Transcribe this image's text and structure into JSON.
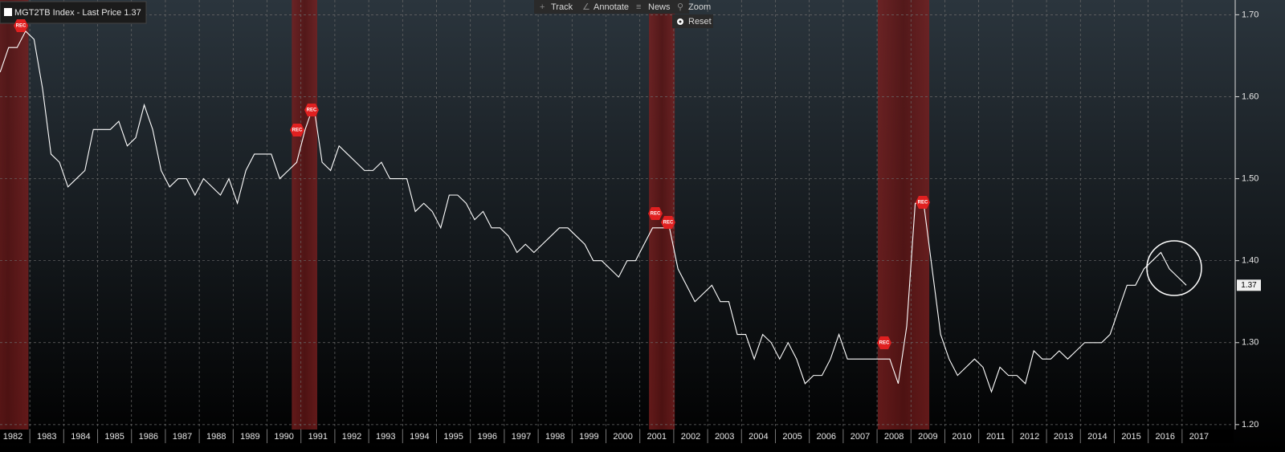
{
  "chart_data": {
    "type": "line",
    "x": [
      1982.125,
      1982.375,
      1982.625,
      1982.875,
      1983.125,
      1983.375,
      1983.625,
      1983.875,
      1984.125,
      1984.375,
      1984.625,
      1984.875,
      1985.125,
      1985.375,
      1985.625,
      1985.875,
      1986.125,
      1986.375,
      1986.625,
      1986.875,
      1987.125,
      1987.375,
      1987.625,
      1987.875,
      1988.125,
      1988.375,
      1988.625,
      1988.875,
      1989.125,
      1989.375,
      1989.625,
      1989.875,
      1990.125,
      1990.375,
      1990.625,
      1990.875,
      1991.125,
      1991.375,
      1991.625,
      1991.875,
      1992.125,
      1992.375,
      1992.625,
      1992.875,
      1993.125,
      1993.375,
      1993.625,
      1993.875,
      1994.125,
      1994.375,
      1994.625,
      1994.875,
      1995.125,
      1995.375,
      1995.625,
      1995.875,
      1996.125,
      1996.375,
      1996.625,
      1996.875,
      1997.125,
      1997.375,
      1997.625,
      1997.875,
      1998.125,
      1998.375,
      1998.625,
      1998.875,
      1999.125,
      1999.375,
      1999.625,
      1999.875,
      2000.125,
      2000.375,
      2000.625,
      2000.875,
      2001.125,
      2001.375,
      2001.625,
      2001.875,
      2002.125,
      2002.375,
      2002.625,
      2002.875,
      2003.125,
      2003.375,
      2003.625,
      2003.875,
      2004.125,
      2004.375,
      2004.625,
      2004.875,
      2005.125,
      2005.375,
      2005.625,
      2005.875,
      2006.125,
      2006.375,
      2006.625,
      2006.875,
      2007.125,
      2007.375,
      2007.625,
      2007.875,
      2008.125,
      2008.375,
      2008.625,
      2008.875,
      2009.125,
      2009.375,
      2009.625,
      2009.875,
      2010.125,
      2010.375,
      2010.625,
      2010.875,
      2011.125,
      2011.375,
      2011.625,
      2011.875,
      2012.125,
      2012.375,
      2012.625,
      2012.875,
      2013.125,
      2013.375,
      2013.625,
      2013.875,
      2014.125,
      2014.375,
      2014.625,
      2014.875,
      2015.125,
      2015.375,
      2015.625,
      2015.875,
      2016.125,
      2016.375,
      2016.625,
      2016.875,
      2017.125
    ],
    "series": [
      {
        "name": "MGT2TB Index - Last Price 1.37",
        "color": "#ffffff",
        "values": [
          1.63,
          1.66,
          1.66,
          1.68,
          1.67,
          1.61,
          1.53,
          1.52,
          1.49,
          1.5,
          1.51,
          1.56,
          1.56,
          1.56,
          1.57,
          1.54,
          1.55,
          1.59,
          1.56,
          1.51,
          1.49,
          1.5,
          1.5,
          1.48,
          1.5,
          1.49,
          1.48,
          1.5,
          1.47,
          1.51,
          1.53,
          1.53,
          1.53,
          1.5,
          1.51,
          1.52,
          1.56,
          1.59,
          1.52,
          1.51,
          1.54,
          1.53,
          1.52,
          1.51,
          1.51,
          1.52,
          1.5,
          1.5,
          1.5,
          1.46,
          1.47,
          1.46,
          1.44,
          1.48,
          1.48,
          1.47,
          1.45,
          1.46,
          1.44,
          1.44,
          1.43,
          1.41,
          1.42,
          1.41,
          1.42,
          1.43,
          1.44,
          1.44,
          1.43,
          1.42,
          1.4,
          1.4,
          1.39,
          1.38,
          1.4,
          1.4,
          1.42,
          1.44,
          1.44,
          1.44,
          1.39,
          1.37,
          1.35,
          1.36,
          1.37,
          1.35,
          1.35,
          1.31,
          1.31,
          1.28,
          1.31,
          1.3,
          1.28,
          1.3,
          1.28,
          1.25,
          1.26,
          1.26,
          1.28,
          1.31,
          1.28,
          1.28,
          1.28,
          1.28,
          1.28,
          1.28,
          1.25,
          1.32,
          1.47,
          1.47,
          1.39,
          1.31,
          1.28,
          1.26,
          1.27,
          1.28,
          1.27,
          1.24,
          1.27,
          1.26,
          1.26,
          1.25,
          1.29,
          1.28,
          1.28,
          1.29,
          1.28,
          1.29,
          1.3,
          1.3,
          1.3,
          1.31,
          1.34,
          1.37,
          1.37,
          1.39,
          1.4,
          1.41,
          1.39,
          1.38,
          1.37
        ]
      }
    ],
    "last_price": 1.37,
    "recessions": [
      [
        1981.75,
        1982.96
      ],
      [
        1990.73,
        1991.48
      ],
      [
        2001.27,
        2002.03
      ],
      [
        2008.02,
        2009.54
      ]
    ],
    "recession_label": "REC",
    "xlim": [
      1982.12,
      2018.52
    ],
    "xticks": [
      1982,
      1983,
      1984,
      1985,
      1986,
      1987,
      1988,
      1989,
      1990,
      1991,
      1992,
      1993,
      1994,
      1995,
      1996,
      1997,
      1998,
      1999,
      2000,
      2001,
      2002,
      2003,
      2004,
      2005,
      2006,
      2007,
      2008,
      2009,
      2010,
      2011,
      2012,
      2013,
      2014,
      2015,
      2016,
      2017
    ],
    "ylim": [
      1.194,
      1.718
    ],
    "yticks": [
      {
        "value": 1.2,
        "label": "1.20"
      },
      {
        "value": 1.3,
        "label": "1.30"
      },
      {
        "value": 1.4,
        "label": "1.40"
      },
      {
        "value": 1.5,
        "label": "1.50"
      },
      {
        "value": 1.6,
        "label": "1.60"
      },
      {
        "value": 1.7,
        "label": "1.70"
      }
    ],
    "grid": true
  },
  "toolbar": {
    "track": "Track",
    "annotate": "Annotate",
    "news": "News",
    "zoom": "Zoom",
    "reset": "Reset"
  }
}
